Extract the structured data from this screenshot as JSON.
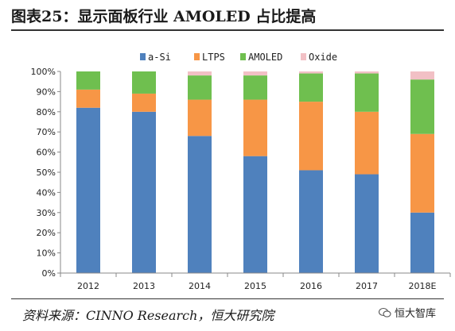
{
  "title": "图表25：显示面板行业 AMOLED 占比提高",
  "source": "资料来源：CINNO Research，恒大研究院",
  "watermark": "恒大智库",
  "chart_data": {
    "type": "bar",
    "stacked": true,
    "categories": [
      "2012",
      "2013",
      "2014",
      "2015",
      "2016",
      "2017",
      "2018E"
    ],
    "series": [
      {
        "name": "a-Si",
        "color": "#4f81bd",
        "values": [
          82,
          80,
          68,
          58,
          51,
          49,
          30
        ]
      },
      {
        "name": "LTPS",
        "color": "#f79646",
        "values": [
          9,
          9,
          18,
          28,
          34,
          31,
          39
        ]
      },
      {
        "name": "AMOLED",
        "color": "#6fbf4f",
        "values": [
          9,
          11,
          12,
          12,
          14,
          19,
          27
        ]
      },
      {
        "name": "Oxide",
        "color": "#f2c0c5",
        "values": [
          0,
          0,
          2,
          2,
          1,
          1,
          4
        ]
      }
    ],
    "yticks": [
      "0%",
      "10%",
      "20%",
      "30%",
      "40%",
      "50%",
      "60%",
      "70%",
      "80%",
      "90%",
      "100%"
    ],
    "ylim": [
      0,
      100
    ],
    "legend_position": "top"
  }
}
